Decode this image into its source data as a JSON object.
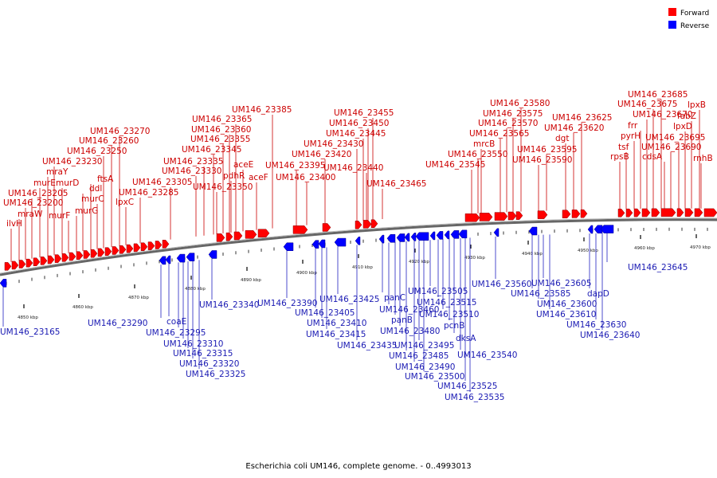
{
  "caption": "Escherichia coli UM146, complete genome. - 0..4993013",
  "legend": [
    {
      "label": "Forward",
      "color": "#ff0000"
    },
    {
      "label": "Reverse",
      "color": "#0000ff"
    }
  ],
  "kbp_ticks": [
    "4850 kbp",
    "4860 kbp",
    "4870 kbp",
    "4880 kbp",
    "4890 kbp",
    "4900 kbp",
    "4910 kbp",
    "4920 kbp",
    "4930 kbp",
    "4940 kbp",
    "4950 kbp",
    "4960 kbp",
    "4970 kbp"
  ],
  "forward_labels": [
    "ilvH",
    "mraW",
    "UM146_23200",
    "UM146_23205",
    "murE",
    "mraY",
    "UM146_23230",
    "murD",
    "murF",
    "murG",
    "ddl",
    "ftsA",
    "murC",
    "UM146_23250",
    "UM146_23260",
    "UM146_23270",
    "lpxC",
    "UM146_23285",
    "UM146_23305",
    "UM146_23330",
    "UM146_23335",
    "UM146_23345",
    "UM146_23355",
    "UM146_23360",
    "UM146_23365",
    "UM146_23350",
    "pdhR",
    "aceE",
    "aceF",
    "UM146_23385",
    "UM146_23395",
    "UM146_23400",
    "UM146_23420",
    "UM146_23430",
    "UM146_23445",
    "UM146_23450",
    "UM146_23455",
    "UM146_23440",
    "UM146_23465",
    "UM146_23545",
    "UM146_23550",
    "mrcB",
    "UM146_23565",
    "UM146_23570",
    "UM146_23575",
    "UM146_23580",
    "UM146_23590",
    "UM146_23595",
    "dgt",
    "UM146_23620",
    "UM146_23625",
    "rpsB",
    "tsf",
    "pyrH",
    "frr",
    "UM146_23670",
    "UM146_23675",
    "UM146_23685",
    "cdsA",
    "UM146_23690",
    "UM146_23695",
    "lpxD",
    "fabZ",
    "lpxB",
    "rnhB"
  ],
  "reverse_labels": [
    "UM146_23165",
    "UM146_23290",
    "coaE",
    "UM146_23295",
    "UM146_23310",
    "UM146_23315",
    "UM146_23320",
    "UM146_23325",
    "UM146_23340",
    "UM146_23390",
    "UM146_23405",
    "UM146_23410",
    "UM146_23415",
    "UM146_23425",
    "UM146_23435",
    "panC",
    "UM146_23460",
    "panB",
    "UM146_23480",
    "UM146_23485",
    "UM146_23490",
    "UM146_23495",
    "UM146_23500",
    "UM146_23505",
    "UM146_23515",
    "UM146_23510",
    "pcnB",
    "dksA",
    "UM146_23540",
    "UM146_23525",
    "UM146_23535",
    "UM146_23560",
    "UM146_23585",
    "UM146_23600",
    "UM146_23605",
    "UM146_23610",
    "dapD",
    "UM146_23630",
    "UM146_23640",
    "UM146_23645"
  ]
}
